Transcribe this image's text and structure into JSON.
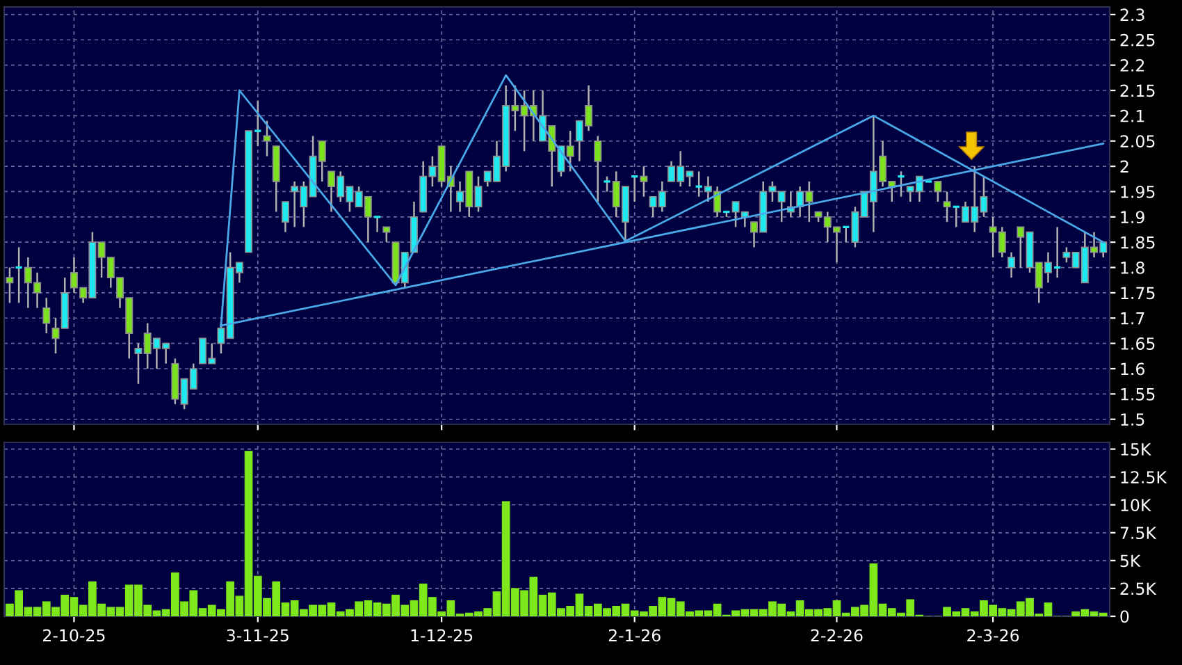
{
  "chart_data": [
    {
      "type": "candlestick",
      "categories": [
        null,
        null,
        null,
        null,
        null,
        null,
        null,
        null,
        null,
        null,
        null,
        null,
        null,
        null,
        null,
        null,
        null,
        null,
        null,
        null,
        null,
        null,
        null,
        null,
        null,
        null,
        null,
        null,
        null,
        null,
        null,
        null,
        null,
        null,
        null,
        null,
        null,
        null,
        null,
        null,
        null,
        null,
        null,
        null,
        null,
        null,
        null,
        null,
        null,
        null,
        null,
        null,
        null,
        null,
        null,
        null,
        null,
        null,
        null,
        null,
        null,
        null,
        null,
        null,
        null,
        null,
        null,
        null,
        null,
        null,
        null,
        null,
        null,
        null,
        null,
        null,
        null,
        null,
        null,
        null,
        null,
        null,
        null,
        null,
        null,
        null,
        null,
        null,
        null,
        null,
        null,
        null,
        null,
        null,
        null,
        null,
        null,
        null,
        null,
        null,
        null,
        null,
        null,
        null,
        null,
        null,
        null,
        null,
        null,
        null,
        null,
        null,
        null,
        null,
        null,
        null,
        null,
        null,
        null,
        null
      ],
      "ohlc": [
        [
          1.78,
          1.8,
          1.73,
          1.77
        ],
        [
          1.8,
          1.84,
          1.73,
          1.8
        ],
        [
          1.8,
          1.82,
          1.72,
          1.77
        ],
        [
          1.77,
          1.79,
          1.72,
          1.75
        ],
        [
          1.72,
          1.74,
          1.67,
          1.69
        ],
        [
          1.68,
          1.7,
          1.63,
          1.66
        ],
        [
          1.68,
          1.78,
          1.68,
          1.75
        ],
        [
          1.79,
          1.82,
          1.75,
          1.76
        ],
        [
          1.76,
          1.76,
          1.73,
          1.74
        ],
        [
          1.74,
          1.87,
          1.74,
          1.85
        ],
        [
          1.85,
          1.85,
          1.78,
          1.82
        ],
        [
          1.82,
          1.82,
          1.76,
          1.78
        ],
        [
          1.78,
          1.78,
          1.72,
          1.74
        ],
        [
          1.74,
          1.74,
          1.62,
          1.67
        ],
        [
          1.63,
          1.65,
          1.57,
          1.64
        ],
        [
          1.67,
          1.69,
          1.6,
          1.63
        ],
        [
          1.64,
          1.66,
          1.6,
          1.66
        ],
        [
          1.64,
          1.65,
          1.61,
          1.65
        ],
        [
          1.61,
          1.62,
          1.53,
          1.54
        ],
        [
          1.53,
          1.58,
          1.52,
          1.58
        ],
        [
          1.56,
          1.61,
          1.56,
          1.6
        ],
        [
          1.61,
          1.66,
          1.61,
          1.66
        ],
        [
          1.61,
          1.65,
          1.61,
          1.62
        ],
        [
          1.65,
          1.69,
          1.63,
          1.68
        ],
        [
          1.66,
          1.83,
          1.66,
          1.8
        ],
        [
          1.79,
          1.81,
          1.77,
          1.81
        ],
        [
          1.83,
          2.07,
          1.83,
          2.07
        ],
        [
          2.07,
          2.13,
          2.04,
          2.07
        ],
        [
          2.06,
          2.09,
          2.02,
          2.05
        ],
        [
          2.04,
          2.04,
          1.91,
          1.97
        ],
        [
          1.89,
          1.93,
          1.87,
          1.93
        ],
        [
          1.95,
          1.97,
          1.88,
          1.96
        ],
        [
          1.92,
          1.97,
          1.88,
          1.96
        ],
        [
          1.94,
          2.06,
          1.94,
          2.02
        ],
        [
          2.05,
          2.05,
          1.97,
          2.01
        ],
        [
          1.99,
          1.99,
          1.91,
          1.96
        ],
        [
          1.94,
          1.99,
          1.93,
          1.98
        ],
        [
          1.93,
          1.96,
          1.91,
          1.96
        ],
        [
          1.92,
          1.96,
          1.92,
          1.95
        ],
        [
          1.94,
          1.94,
          1.85,
          1.9
        ],
        [
          1.9,
          1.9,
          1.87,
          1.9
        ],
        [
          1.88,
          1.88,
          1.85,
          1.87
        ],
        [
          1.85,
          1.85,
          1.77,
          1.77
        ],
        [
          1.77,
          1.83,
          1.76,
          1.83
        ],
        [
          1.83,
          1.93,
          1.83,
          1.9
        ],
        [
          1.91,
          2.01,
          1.91,
          1.98
        ],
        [
          1.98,
          2.02,
          1.96,
          2.0
        ],
        [
          2.04,
          2.04,
          1.96,
          1.97
        ],
        [
          1.98,
          2.0,
          1.91,
          1.96
        ],
        [
          1.93,
          1.97,
          1.91,
          1.95
        ],
        [
          1.99,
          1.99,
          1.9,
          1.92
        ],
        [
          1.92,
          1.98,
          1.91,
          1.96
        ],
        [
          1.97,
          1.99,
          1.96,
          1.99
        ],
        [
          1.97,
          2.05,
          1.97,
          2.02
        ],
        [
          2.0,
          2.16,
          1.99,
          2.12
        ],
        [
          2.12,
          2.16,
          2.07,
          2.11
        ],
        [
          2.12,
          2.15,
          2.03,
          2.1
        ],
        [
          2.12,
          2.15,
          2.05,
          2.1
        ],
        [
          2.05,
          2.15,
          2.05,
          2.1
        ],
        [
          2.08,
          2.08,
          1.96,
          2.03
        ],
        [
          1.99,
          2.04,
          1.98,
          2.04
        ],
        [
          2.04,
          2.07,
          1.99,
          2.02
        ],
        [
          2.05,
          2.09,
          2.01,
          2.09
        ],
        [
          2.12,
          2.16,
          2.07,
          2.08
        ],
        [
          2.05,
          2.06,
          1.93,
          2.01
        ],
        [
          1.97,
          1.98,
          1.95,
          1.97
        ],
        [
          1.97,
          1.99,
          1.9,
          1.92
        ],
        [
          1.89,
          1.96,
          1.85,
          1.96
        ],
        [
          1.98,
          1.98,
          1.93,
          1.98
        ],
        [
          1.98,
          2.0,
          1.94,
          1.97
        ],
        [
          1.92,
          1.94,
          1.9,
          1.94
        ],
        [
          1.92,
          1.97,
          1.91,
          1.95
        ],
        [
          1.97,
          2.01,
          1.97,
          2.0
        ],
        [
          1.97,
          2.03,
          1.96,
          2.0
        ],
        [
          1.98,
          1.99,
          1.96,
          1.99
        ],
        [
          1.96,
          1.99,
          1.94,
          1.96
        ],
        [
          1.95,
          1.98,
          1.93,
          1.96
        ],
        [
          1.95,
          1.96,
          1.9,
          1.91
        ],
        [
          1.91,
          1.91,
          1.9,
          1.91
        ],
        [
          1.91,
          1.93,
          1.88,
          1.93
        ],
        [
          1.9,
          1.91,
          1.88,
          1.91
        ],
        [
          1.89,
          1.89,
          1.84,
          1.87
        ],
        [
          1.87,
          1.97,
          1.87,
          1.95
        ],
        [
          1.95,
          1.97,
          1.93,
          1.96
        ],
        [
          1.93,
          1.95,
          1.89,
          1.95
        ],
        [
          1.91,
          1.95,
          1.9,
          1.92
        ],
        [
          1.92,
          1.96,
          1.9,
          1.95
        ],
        [
          1.95,
          1.97,
          1.89,
          1.93
        ],
        [
          1.91,
          1.91,
          1.89,
          1.9
        ],
        [
          1.9,
          1.91,
          1.85,
          1.88
        ],
        [
          1.88,
          1.88,
          1.81,
          1.87
        ],
        [
          1.88,
          1.88,
          1.85,
          1.88
        ],
        [
          1.85,
          1.92,
          1.84,
          1.91
        ],
        [
          1.9,
          1.95,
          1.9,
          1.95
        ],
        [
          1.93,
          2.1,
          1.87,
          1.99
        ],
        [
          2.02,
          2.05,
          1.96,
          1.97
        ],
        [
          1.97,
          1.97,
          1.93,
          1.96
        ],
        [
          1.98,
          1.99,
          1.94,
          1.98
        ],
        [
          1.95,
          1.96,
          1.93,
          1.96
        ],
        [
          1.95,
          1.98,
          1.93,
          1.98
        ],
        [
          1.97,
          1.97,
          1.97,
          1.97
        ],
        [
          1.97,
          1.97,
          1.93,
          1.95
        ],
        [
          1.93,
          1.95,
          1.89,
          1.92
        ],
        [
          1.92,
          1.92,
          1.88,
          1.92
        ],
        [
          1.89,
          1.93,
          1.89,
          1.92
        ],
        [
          1.89,
          2.0,
          1.87,
          1.92
        ],
        [
          1.91,
          1.98,
          1.9,
          1.94
        ],
        [
          1.88,
          1.9,
          1.82,
          1.87
        ],
        [
          1.87,
          1.88,
          1.82,
          1.83
        ],
        [
          1.8,
          1.83,
          1.78,
          1.82
        ],
        [
          1.88,
          1.88,
          1.8,
          1.86
        ],
        [
          1.8,
          1.87,
          1.79,
          1.87
        ],
        [
          1.81,
          1.81,
          1.73,
          1.76
        ],
        [
          1.79,
          1.83,
          1.77,
          1.81
        ],
        [
          1.8,
          1.88,
          1.78,
          1.8
        ],
        [
          1.82,
          1.84,
          1.81,
          1.83
        ],
        [
          1.8,
          1.83,
          1.8,
          1.83
        ],
        [
          1.77,
          1.87,
          1.77,
          1.84
        ],
        [
          1.84,
          1.87,
          1.82,
          1.83
        ],
        [
          1.83,
          1.85,
          1.82,
          1.85
        ]
      ],
      "colors": [
        "#7ce21e",
        "#1ee8f0",
        "#7ce21e",
        "#7ce21e",
        "#7ce21e",
        "#7ce21e",
        "#1ee8f0",
        "#7ce21e",
        "#7ce21e",
        "#1ee8f0",
        "#7ce21e",
        "#7ce21e",
        "#7ce21e",
        "#7ce21e",
        "#1ee8f0",
        "#7ce21e",
        "#1ee8f0",
        "#1ee8f0",
        "#7ce21e",
        "#1ee8f0",
        "#1ee8f0",
        "#1ee8f0",
        "#1ee8f0",
        "#1ee8f0",
        "#1ee8f0",
        "#1ee8f0",
        "#1ee8f0",
        "#1ee8f0",
        "#7ce21e",
        "#7ce21e",
        "#1ee8f0",
        "#1ee8f0",
        "#1ee8f0",
        "#1ee8f0",
        "#7ce21e",
        "#7ce21e",
        "#1ee8f0",
        "#1ee8f0",
        "#1ee8f0",
        "#7ce21e",
        "#1ee8f0",
        "#7ce21e",
        "#7ce21e",
        "#1ee8f0",
        "#1ee8f0",
        "#1ee8f0",
        "#1ee8f0",
        "#7ce21e",
        "#7ce21e",
        "#1ee8f0",
        "#7ce21e",
        "#1ee8f0",
        "#1ee8f0",
        "#1ee8f0",
        "#1ee8f0",
        "#7ce21e",
        "#7ce21e",
        "#7ce21e",
        "#1ee8f0",
        "#7ce21e",
        "#1ee8f0",
        "#7ce21e",
        "#1ee8f0",
        "#7ce21e",
        "#7ce21e",
        "#1ee8f0",
        "#7ce21e",
        "#1ee8f0",
        "#1ee8f0",
        "#7ce21e",
        "#1ee8f0",
        "#1ee8f0",
        "#1ee8f0",
        "#1ee8f0",
        "#1ee8f0",
        "#1ee8f0",
        "#1ee8f0",
        "#7ce21e",
        "#1ee8f0",
        "#1ee8f0",
        "#1ee8f0",
        "#7ce21e",
        "#1ee8f0",
        "#1ee8f0",
        "#1ee8f0",
        "#1ee8f0",
        "#1ee8f0",
        "#7ce21e",
        "#7ce21e",
        "#7ce21e",
        "#7ce21e",
        "#1ee8f0",
        "#1ee8f0",
        "#1ee8f0",
        "#1ee8f0",
        "#7ce21e",
        "#7ce21e",
        "#1ee8f0",
        "#1ee8f0",
        "#1ee8f0",
        "#1ee8f0",
        "#7ce21e",
        "#7ce21e",
        "#1ee8f0",
        "#1ee8f0",
        "#1ee8f0",
        "#1ee8f0",
        "#7ce21e",
        "#7ce21e",
        "#1ee8f0",
        "#7ce21e",
        "#1ee8f0",
        "#7ce21e",
        "#1ee8f0",
        "#1ee8f0",
        "#1ee8f0",
        "#1ee8f0",
        "#1ee8f0",
        "#7ce21e",
        "#1ee8f0"
      ],
      "series": [
        {
          "type": "line",
          "color": "#4aa8e8",
          "values": [
            null,
            null,
            null,
            null,
            null,
            null,
            null,
            null,
            null,
            null,
            null,
            null,
            null,
            null,
            null,
            null,
            null,
            null,
            null,
            null,
            null,
            null,
            null,
            1.685,
            null,
            2.15,
            null,
            null,
            null,
            null,
            null,
            null,
            null,
            null,
            null,
            null,
            null,
            null,
            null,
            null,
            null,
            null,
            1.765,
            null,
            null,
            null,
            null,
            null,
            null,
            null,
            null,
            null,
            null,
            null,
            2.18,
            null,
            null,
            null,
            null,
            null,
            null,
            null,
            null,
            null,
            null,
            null,
            null,
            1.852,
            null,
            null,
            null,
            null,
            null,
            null,
            null,
            null,
            null,
            null,
            null,
            null,
            null,
            null,
            null,
            null,
            null,
            null,
            null,
            null,
            null,
            null,
            null,
            null,
            null,
            null,
            2.1,
            null,
            null,
            null,
            null,
            null,
            null,
            null,
            null,
            null,
            null,
            null,
            null,
            null,
            null,
            null,
            null,
            null,
            null,
            null,
            null,
            null,
            null,
            null,
            null,
            1.85
          ]
        },
        {
          "type": "line",
          "color": "#4aa8e8",
          "values": [
            null,
            null,
            null,
            null,
            null,
            null,
            null,
            null,
            null,
            null,
            null,
            null,
            null,
            null,
            null,
            null,
            null,
            null,
            null,
            null,
            null,
            null,
            null,
            1.685,
            null,
            null,
            null,
            null,
            null,
            null,
            null,
            null,
            null,
            null,
            null,
            null,
            null,
            null,
            null,
            null,
            null,
            null,
            null,
            null,
            null,
            null,
            null,
            null,
            null,
            null,
            null,
            null,
            null,
            null,
            null,
            null,
            null,
            null,
            null,
            null,
            null,
            null,
            null,
            null,
            null,
            null,
            null,
            null,
            null,
            null,
            null,
            null,
            null,
            null,
            null,
            null,
            null,
            null,
            null,
            null,
            null,
            null,
            null,
            null,
            null,
            null,
            null,
            null,
            null,
            null,
            null,
            null,
            null,
            null,
            null,
            null,
            null,
            null,
            null,
            null,
            null,
            null,
            null,
            null,
            null,
            null,
            null,
            null,
            null,
            null,
            null,
            null,
            null,
            null,
            null,
            null,
            null,
            null,
            null,
            2.045
          ]
        }
      ],
      "ylim": [
        1.49,
        2.315
      ],
      "yticks": [
        1.5,
        1.55,
        1.6,
        1.65,
        1.7,
        1.75,
        1.8,
        1.85,
        1.9,
        1.95,
        2,
        2.05,
        2.1,
        2.15,
        2.2,
        2.25,
        2.3
      ],
      "grid": true,
      "tick_labels": "y"
    },
    {
      "type": "bar",
      "categories": [
        null,
        null,
        null,
        null,
        null,
        null,
        null,
        "2-10-25",
        null,
        null,
        null,
        null,
        null,
        null,
        null,
        null,
        null,
        null,
        null,
        null,
        null,
        null,
        null,
        null,
        null,
        null,
        null,
        "3-11-25",
        null,
        null,
        null,
        null,
        null,
        null,
        null,
        null,
        null,
        null,
        null,
        null,
        null,
        null,
        null,
        null,
        null,
        null,
        null,
        "1-12-25",
        null,
        null,
        null,
        null,
        null,
        null,
        null,
        null,
        null,
        null,
        null,
        null,
        null,
        null,
        null,
        null,
        null,
        null,
        null,
        null,
        "2-1-26",
        null,
        null,
        null,
        null,
        null,
        null,
        null,
        null,
        null,
        null,
        null,
        null,
        null,
        null,
        null,
        null,
        null,
        null,
        null,
        null,
        null,
        "2-2-26",
        null,
        null,
        null,
        null,
        null,
        null,
        null,
        null,
        null,
        null,
        null,
        null,
        null,
        null,
        null,
        null,
        "2-3-26",
        null,
        null,
        null,
        null,
        null,
        null,
        null,
        null,
        null,
        null,
        null,
        null
      ],
      "values": [
        1100,
        2300,
        800,
        800,
        1300,
        800,
        1900,
        1700,
        1000,
        3100,
        1100,
        800,
        800,
        2800,
        2800,
        1000,
        500,
        600,
        3900,
        1300,
        2300,
        700,
        1000,
        600,
        3100,
        1800,
        14800,
        3600,
        1600,
        3100,
        1200,
        1400,
        600,
        1000,
        1000,
        1200,
        400,
        600,
        1300,
        1400,
        1200,
        1100,
        1900,
        1000,
        1400,
        2900,
        1700,
        400,
        1400,
        200,
        300,
        400,
        700,
        2200,
        10300,
        2500,
        2300,
        3500,
        1900,
        2100,
        700,
        900,
        2000,
        900,
        1100,
        700,
        900,
        1100,
        500,
        400,
        900,
        1700,
        1600,
        1300,
        400,
        500,
        500,
        1100,
        100,
        500,
        600,
        600,
        600,
        1300,
        1100,
        400,
        1400,
        600,
        600,
        700,
        1400,
        300,
        800,
        1000,
        4700,
        1100,
        700,
        300,
        1500,
        100,
        0,
        0,
        800,
        400,
        700,
        400,
        1400,
        1000,
        700,
        600,
        1300,
        1600,
        200,
        1200,
        0,
        0,
        400,
        600,
        400,
        300
      ],
      "color": "#7ee81a",
      "ylim": [
        0,
        15600
      ],
      "yticks": [
        {
          "value": 0,
          "label": "0"
        },
        {
          "value": 2500,
          "label": "2.5K"
        },
        {
          "value": 5000,
          "label": "5K"
        },
        {
          "value": 7500,
          "label": "7.5K"
        },
        {
          "value": 10000,
          "label": "10K"
        },
        {
          "value": 12500,
          "label": "12.5K"
        },
        {
          "value": 15000,
          "label": "15K"
        }
      ],
      "grid": true
    }
  ]
}
